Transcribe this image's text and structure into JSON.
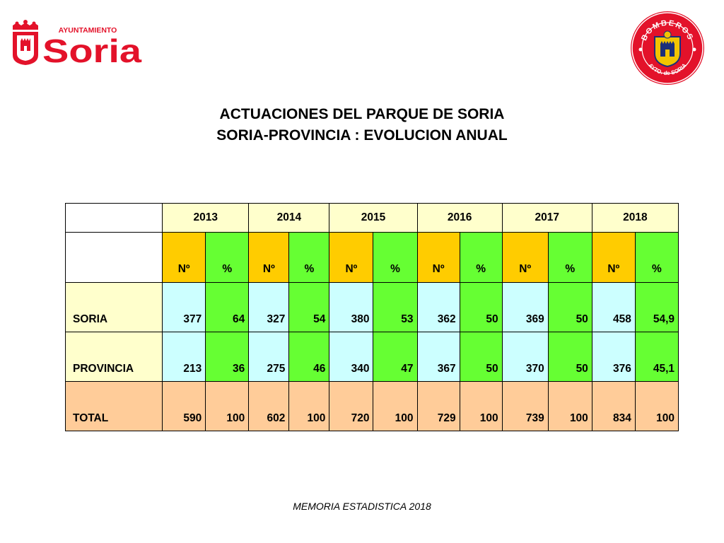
{
  "logos": {
    "ayuntamiento_small": "AYUNTAMIENTO",
    "ayuntamiento_big": "Soria",
    "bomberos_top": "BOMBEROS",
    "bomberos_bottom": "AYTO. de SORIA",
    "brand_red": "#e3122a"
  },
  "title": {
    "line1": "ACTUACIONES DEL PARQUE DE SORIA",
    "line2": "SORIA-PROVINCIA : EVOLUCION ANUAL"
  },
  "table": {
    "years": [
      "2013",
      "2014",
      "2015",
      "2016",
      "2017",
      "2018"
    ],
    "unit_no": "Nº",
    "unit_pct": "%",
    "rows": [
      {
        "label": "SORIA",
        "values": [
          "377",
          "64",
          "327",
          "54",
          "380",
          "53",
          "362",
          "50",
          "369",
          "50",
          "458",
          "54,9"
        ]
      },
      {
        "label": "PROVINCIA",
        "values": [
          "213",
          "36",
          "275",
          "46",
          "340",
          "47",
          "367",
          "50",
          "370",
          "50",
          "376",
          "45,1"
        ]
      },
      {
        "label": "TOTAL",
        "values": [
          "590",
          "100",
          "602",
          "100",
          "720",
          "100",
          "729",
          "100",
          "739",
          "100",
          "834",
          "100"
        ]
      }
    ],
    "colors": {
      "year_header": "#ffffcc",
      "no_header": "#ffcc00",
      "pct_header": "#66ff33",
      "value_cell": "#ccffff",
      "row_label": "#ffffcc",
      "total_row": "#ffcc99"
    }
  },
  "footer": "MEMORIA ESTADISTICA 2018"
}
